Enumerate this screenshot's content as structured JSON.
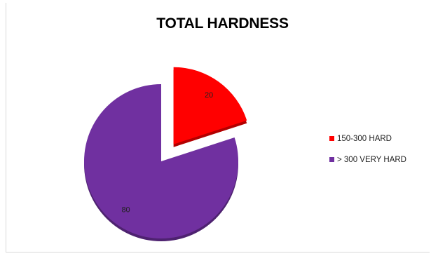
{
  "chart_data": {
    "type": "pie",
    "title": "TOTAL HARDNESS",
    "categories": [
      "150-300 HARD",
      "> 300 VERY HARD"
    ],
    "values": [
      20,
      80
    ],
    "colors": [
      "#ff0000",
      "#7030a0"
    ],
    "exploded": [
      true,
      false
    ],
    "data_labels": [
      "20",
      "80"
    ],
    "legend_position": "right"
  }
}
